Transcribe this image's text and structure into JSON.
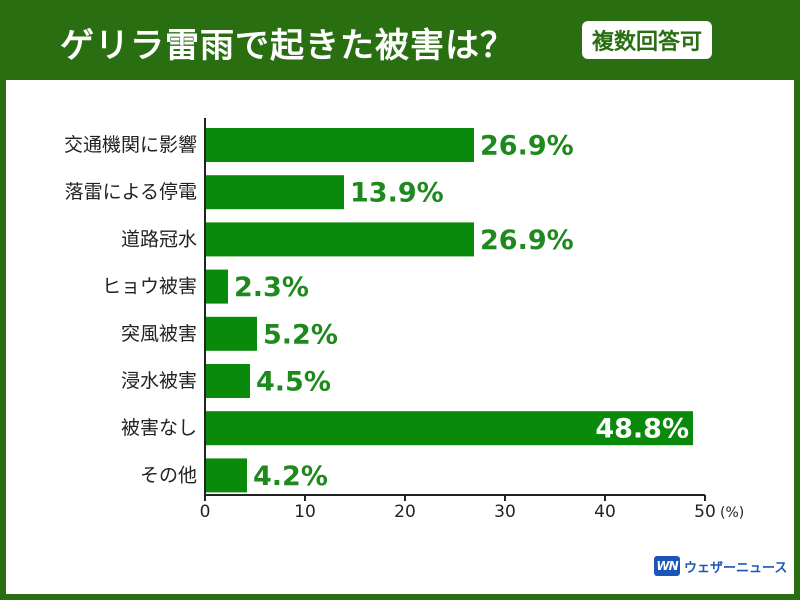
{
  "header": {
    "title": "ゲリラ雷雨で起きた被害は？",
    "badge": "複数回答可"
  },
  "brand": {
    "mark": "WN",
    "name": "ウェザーニュース"
  },
  "colors": {
    "header_bg": "#2a6e12",
    "bar": "#0a8a0a",
    "value_text": "#1e8a1e",
    "brand": "#1a56b8"
  },
  "chart_data": {
    "type": "bar",
    "orientation": "horizontal",
    "categories": [
      "交通機関に影響",
      "落雷による停電",
      "道路冠水",
      "ヒョウ被害",
      "突風被害",
      "浸水被害",
      "被害なし",
      "その他"
    ],
    "values": [
      26.9,
      13.9,
      26.9,
      2.3,
      5.2,
      4.5,
      48.8,
      4.2
    ],
    "value_labels": [
      "26.9%",
      "13.9%",
      "26.9%",
      "2.3%",
      "5.2%",
      "4.5%",
      "48.8%",
      "4.2%"
    ],
    "xlim": [
      0,
      50
    ],
    "xticks": [
      0,
      10,
      20,
      30,
      40,
      50
    ],
    "xtick_labels": [
      "0",
      "10",
      "20",
      "30",
      "40",
      "50"
    ],
    "unit": "(%)",
    "grid": false
  }
}
